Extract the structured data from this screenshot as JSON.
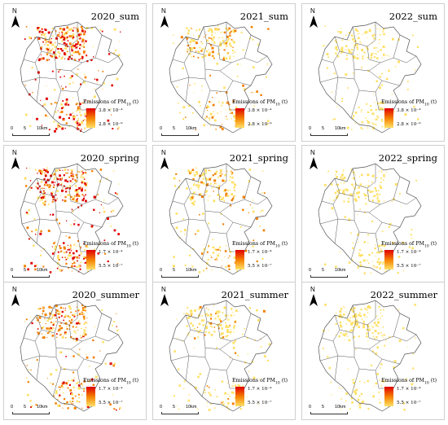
{
  "panels": [
    {
      "title": "2020_sum",
      "legend_max": "3.8 × 10⁻⁴",
      "legend_min": "2.8 × 10⁻⁹",
      "intensity": 1.0
    },
    {
      "title": "2021_sum",
      "legend_max": "3.8 × 10⁻⁴",
      "legend_min": "2.8 × 10⁻⁹",
      "intensity": 0.45
    },
    {
      "title": "2022_sum",
      "legend_max": "3.8 × 10⁻⁴",
      "legend_min": "2.8 × 10⁻⁹",
      "intensity": 0.3
    },
    {
      "title": "2020_spring",
      "legend_max": "1.7 × 10⁻⁴",
      "legend_min": "5.5 × 10⁻⁷",
      "intensity": 1.0
    },
    {
      "title": "2021_spring",
      "legend_max": "1.7 × 10⁻⁴",
      "legend_min": "5.5 × 10⁻⁷",
      "intensity": 0.45
    },
    {
      "title": "2022_spring",
      "legend_max": "1.7 × 10⁻⁴",
      "legend_min": "5.5 × 10⁻⁷",
      "intensity": 0.3
    },
    {
      "title": "2020_summer",
      "legend_max": "1.7 × 10⁻⁴",
      "legend_min": "5.5 × 10⁻⁷",
      "intensity": 0.7
    },
    {
      "title": "2021_summer",
      "legend_max": "1.7 × 10⁻⁴",
      "legend_min": "5.5 × 10⁻⁷",
      "intensity": 0.35
    },
    {
      "title": "2022_summer",
      "legend_max": "1.7 × 10⁻⁴",
      "legend_min": "5.5 × 10⁻⁷",
      "intensity": 0.3
    }
  ],
  "legend_title": "Emissions of PM",
  "legend_sub": "10",
  "legend_unit": " (t)",
  "north_label": "N",
  "scale_labels": [
    "0",
    "5",
    "10km"
  ],
  "colors": {
    "high": "#e00000",
    "mid": "#f47f00",
    "low": "#ffe066",
    "outline": "#555555"
  }
}
